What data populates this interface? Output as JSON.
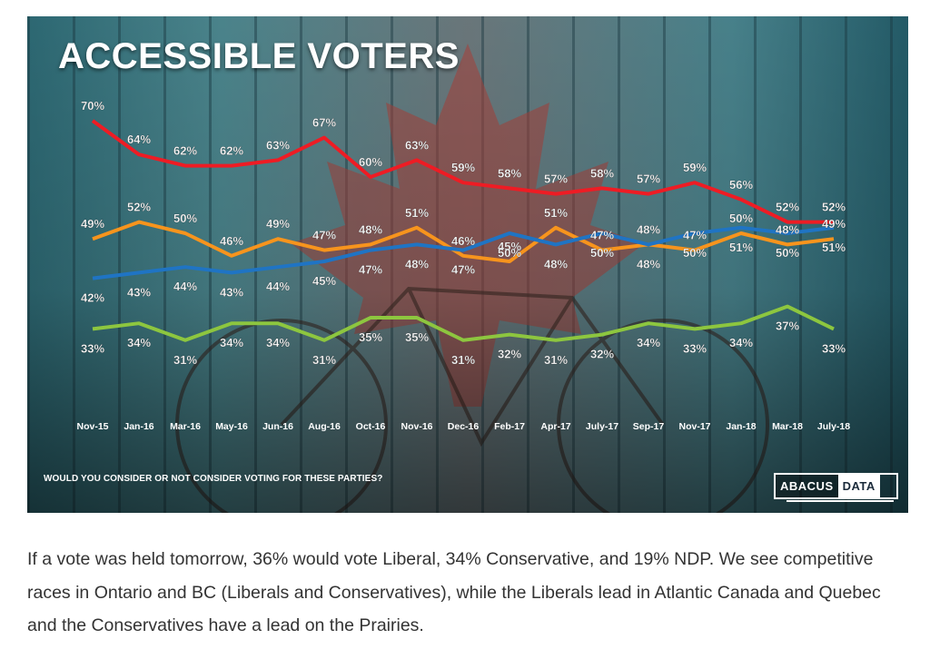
{
  "chart_data": {
    "type": "line",
    "title": "ACCESSIBLE VOTERS",
    "subtitle": "WOULD YOU CONSIDER OR NOT CONSIDER VOTING FOR THESE PARTIES?",
    "xlabel": "",
    "ylabel": "",
    "ylim": [
      20,
      75
    ],
    "grid": false,
    "legend": "none",
    "categories": [
      "Nov-15",
      "Jan-16",
      "Mar-16",
      "May-16",
      "Jun-16",
      "Aug-16",
      "Oct-16",
      "Nov-16",
      "Dec-16",
      "Feb-17",
      "Apr-17",
      "July-17",
      "Sep-17",
      "Nov-17",
      "Jan-18",
      "Mar-18",
      "July-18"
    ],
    "series": [
      {
        "color": "#ee1c24",
        "values": [
          70,
          64,
          62,
          62,
          63,
          67,
          60,
          63,
          59,
          58,
          57,
          58,
          57,
          59,
          56,
          52,
          52
        ],
        "labels": [
          "70%",
          "64%",
          "62%",
          "62%",
          "63%",
          "67%",
          "60%",
          "63%",
          "59%",
          "58%",
          "57%",
          "58%",
          "57%",
          "59%",
          "56%",
          "52%",
          "52%"
        ]
      },
      {
        "color": "#f7941d",
        "values": [
          49,
          52,
          50,
          46,
          49,
          47,
          48,
          51,
          46,
          45,
          51,
          47,
          48,
          47,
          50,
          48,
          49
        ],
        "labels": [
          "49%",
          "52%",
          "50%",
          "46%",
          "49%",
          "47%",
          "48%",
          "51%",
          "46%",
          "45%",
          "51%",
          "47%",
          "48%",
          "47%",
          "50%",
          "48%",
          "49%"
        ]
      },
      {
        "color": "#1f74c4",
        "values": [
          42,
          43,
          44,
          43,
          44,
          45,
          47,
          48,
          47,
          50,
          48,
          50,
          48,
          50,
          51,
          50,
          51
        ],
        "labels": [
          "42%",
          "43%",
          "44%",
          "43%",
          "44%",
          "45%",
          "47%",
          "48%",
          "47%",
          "50%",
          "48%",
          "50%",
          "48%",
          "50%",
          "51%",
          "50%",
          "51%"
        ]
      },
      {
        "color": "#8dc63f",
        "values": [
          33,
          34,
          31,
          34,
          34,
          31,
          35,
          35,
          31,
          32,
          31,
          32,
          34,
          33,
          34,
          37,
          33
        ],
        "labels": [
          "33%",
          "34%",
          "31%",
          "34%",
          "34%",
          "31%",
          "35%",
          "35%",
          "31%",
          "32%",
          "31%",
          "32%",
          "34%",
          "33%",
          "34%",
          "37%",
          "33%"
        ]
      }
    ]
  },
  "logo": {
    "part1": "ABACUS",
    "part2": "DATA"
  },
  "caption": "If a vote was held tomorrow, 36% would vote Liberal, 34% Conservative, and 19% NDP.  We see competitive races in Ontario and BC (Liberals and Conservatives), while the Liberals lead in Atlantic Canada and Quebec and the Conservatives have a lead on the Prairies."
}
